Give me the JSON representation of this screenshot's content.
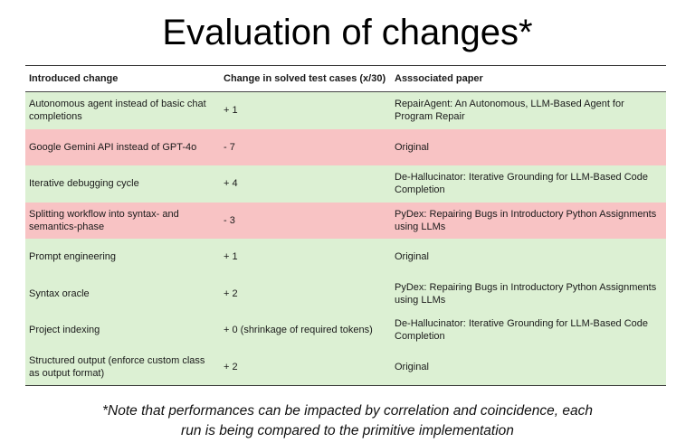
{
  "title": "Evaluation of changes*",
  "table": {
    "headers": [
      "Introduced change",
      "Change in solved test cases (x/30)",
      "Asssociated paper"
    ],
    "rows": [
      {
        "change": "Autonomous agent instead of basic chat completions",
        "delta": "+ 1",
        "paper": "RepairAgent: An Autonomous, LLM-Based Agent for Program Repair",
        "status": "positive"
      },
      {
        "change": "Google Gemini API instead of GPT-4o",
        "delta": "- 7",
        "paper": "Original",
        "status": "negative"
      },
      {
        "change": "Iterative debugging cycle",
        "delta": "+ 4",
        "paper": "De-Hallucinator: Iterative Grounding for LLM-Based Code Completion",
        "status": "positive"
      },
      {
        "change": "Splitting workflow into syntax- and semantics-phase",
        "delta": "- 3",
        "paper": "PyDex: Repairing Bugs in Introductory Python Assignments using LLMs",
        "status": "negative"
      },
      {
        "change": "Prompt engineering",
        "delta": "+ 1",
        "paper": "Original",
        "status": "positive"
      },
      {
        "change": "Syntax oracle",
        "delta": "+ 2",
        "paper": "PyDex: Repairing Bugs in Introductory Python Assignments using LLMs",
        "status": "positive"
      },
      {
        "change": "Project indexing",
        "delta": "+ 0 (shrinkage of required tokens)",
        "paper": "De-Hallucinator: Iterative Grounding for LLM-Based Code Completion",
        "status": "positive"
      },
      {
        "change": "Structured output (enforce custom class as output format)",
        "delta": "+ 2",
        "paper": "Original",
        "status": "positive"
      }
    ]
  },
  "footnote": {
    "line1": "*Note that performances can be impacted by correlation and coincidence, each",
    "line2": "run is being compared to the primitive implementation"
  },
  "colors": {
    "positive": "#dcf0d3",
    "negative": "#f8c3c4"
  }
}
